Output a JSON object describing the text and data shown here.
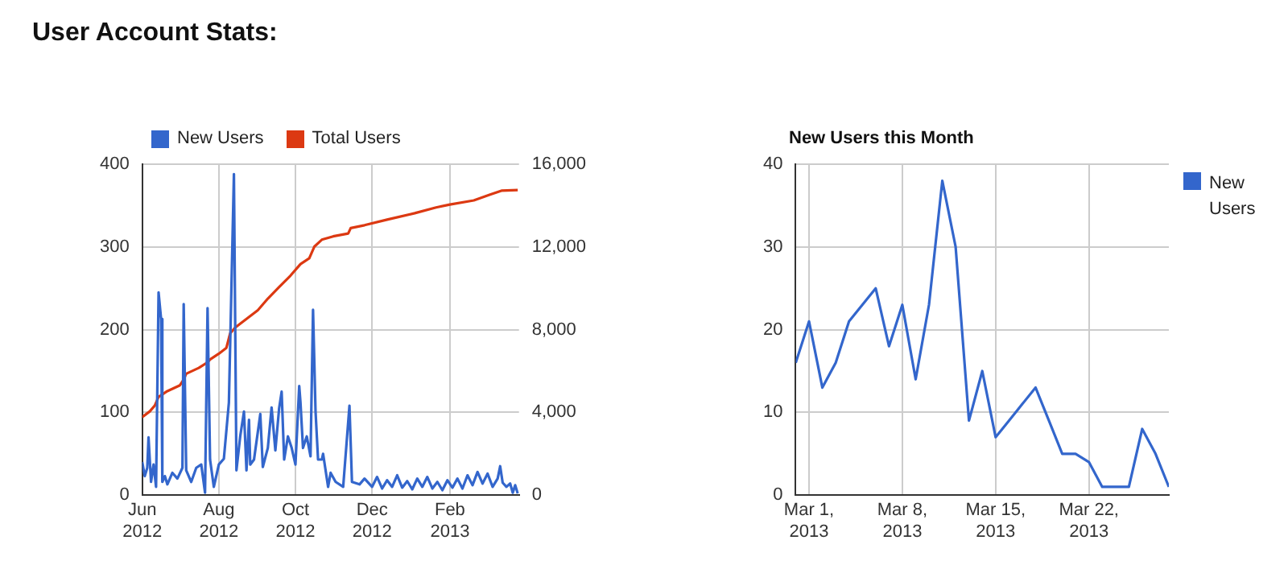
{
  "chart_data": [
    {
      "type": "line",
      "title": "User Account Stats:",
      "legend": "top left",
      "grid": true,
      "marker": "none",
      "xlim": [
        "2012-06-01",
        "2013-03-28"
      ],
      "xticks": [
        {
          "value": "2012-06-01",
          "label": "Jun 2012"
        },
        {
          "value": "2012-08-01",
          "label": "Aug 2012"
        },
        {
          "value": "2012-10-01",
          "label": "Oct 2012"
        },
        {
          "value": "2012-12-01",
          "label": "Dec 2012"
        },
        {
          "value": "2013-02-01",
          "label": "Feb 2013"
        }
      ],
      "ylim": [
        0,
        400
      ],
      "yticks": [
        0,
        100,
        200,
        300,
        400
      ],
      "y2lim": [
        0,
        16000
      ],
      "y2ticks": [
        0,
        {
          "value": 4000,
          "label": "4,000"
        },
        {
          "value": 8000,
          "label": "8,000"
        },
        {
          "value": 12000,
          "label": "12,000"
        },
        {
          "value": 16000,
          "label": "16,000"
        }
      ],
      "series": [
        {
          "name": "New Users",
          "color": "#3366cc",
          "axis": "y",
          "x": [
            "2012-06-01",
            "2012-06-03",
            "2012-06-05",
            "2012-06-06",
            "2012-06-08",
            "2012-06-10",
            "2012-06-12",
            "2012-06-14",
            "2012-06-16",
            "2012-06-17",
            "2012-06-19",
            "2012-06-21",
            "2012-06-25",
            "2012-06-29",
            "2012-07-03",
            "2012-07-04",
            "2012-07-06",
            "2012-07-10",
            "2012-07-14",
            "2012-07-18",
            "2012-07-21",
            "2012-07-23",
            "2012-07-25",
            "2012-07-28",
            "2012-08-01",
            "2012-08-05",
            "2012-08-09",
            "2012-08-13",
            "2012-08-15",
            "2012-08-18",
            "2012-08-21",
            "2012-08-23",
            "2012-08-25",
            "2012-08-26",
            "2012-08-29",
            "2012-09-03",
            "2012-09-05",
            "2012-09-09",
            "2012-09-12",
            "2012-09-15",
            "2012-09-18",
            "2012-09-20",
            "2012-09-22",
            "2012-09-25",
            "2012-09-28",
            "2012-10-01",
            "2012-10-04",
            "2012-10-05",
            "2012-10-07",
            "2012-10-10",
            "2012-10-13",
            "2012-10-15",
            "2012-10-17",
            "2012-10-19",
            "2012-10-22",
            "2012-10-23",
            "2012-10-27",
            "2012-10-29",
            "2012-11-02",
            "2012-11-08",
            "2012-11-13",
            "2012-11-15",
            "2012-11-21",
            "2012-11-25",
            "2012-12-01",
            "2012-12-05",
            "2012-12-09",
            "2012-12-13",
            "2012-12-17",
            "2012-12-21",
            "2012-12-25",
            "2012-12-29",
            "2013-01-02",
            "2013-01-06",
            "2013-01-10",
            "2013-01-14",
            "2013-01-18",
            "2013-01-22",
            "2013-01-26",
            "2013-01-30",
            "2013-02-03",
            "2013-02-07",
            "2013-02-11",
            "2013-02-15",
            "2013-02-19",
            "2013-02-23",
            "2013-02-27",
            "2013-03-03",
            "2013-03-07",
            "2013-03-11",
            "2013-03-13",
            "2013-03-15",
            "2013-03-18",
            "2013-03-21",
            "2013-03-23",
            "2013-03-25",
            "2013-03-27"
          ],
          "values": [
            40,
            23,
            33,
            70,
            16,
            37,
            10,
            245,
            213,
            16,
            23,
            13,
            27,
            20,
            33,
            231,
            30,
            16,
            33,
            37,
            3,
            226,
            43,
            10,
            37,
            44,
            112,
            388,
            30,
            71,
            101,
            30,
            91,
            37,
            43,
            98,
            34,
            57,
            106,
            54,
            105,
            125,
            43,
            71,
            57,
            37,
            132,
            112,
            57,
            71,
            47,
            224,
            101,
            43,
            43,
            50,
            10,
            27,
            16,
            10,
            108,
            16,
            13,
            20,
            10,
            22,
            8,
            18,
            10,
            24,
            9,
            17,
            7,
            20,
            10,
            22,
            8,
            16,
            6,
            18,
            9,
            20,
            8,
            24,
            12,
            28,
            14,
            26,
            10,
            20,
            35,
            15,
            10,
            14,
            3,
            12,
            2
          ]
        },
        {
          "name": "Total Users",
          "color": "#dc3912",
          "axis": "y2",
          "x": [
            "2012-06-01",
            "2012-06-07",
            "2012-06-11",
            "2012-06-14",
            "2012-06-21",
            "2012-07-01",
            "2012-07-04",
            "2012-07-06",
            "2012-07-16",
            "2012-07-23",
            "2012-07-25",
            "2012-08-01",
            "2012-08-07",
            "2012-08-10",
            "2012-08-14",
            "2012-08-23",
            "2012-09-01",
            "2012-09-09",
            "2012-09-18",
            "2012-09-27",
            "2012-10-05",
            "2012-10-12",
            "2012-10-16",
            "2012-10-22",
            "2012-10-31",
            "2012-11-12",
            "2012-11-14",
            "2012-11-25",
            "2012-12-13",
            "2013-01-04",
            "2013-01-21",
            "2013-02-01",
            "2013-02-20",
            "2013-03-05",
            "2013-03-14",
            "2013-03-27"
          ],
          "values": [
            3770,
            4050,
            4330,
            4750,
            5030,
            5310,
            5590,
            5870,
            6150,
            6420,
            6560,
            6840,
            7120,
            7820,
            8100,
            8520,
            8940,
            9500,
            10060,
            10610,
            11170,
            11450,
            12010,
            12350,
            12510,
            12650,
            12910,
            13050,
            13320,
            13630,
            13910,
            14050,
            14250,
            14530,
            14720,
            14750
          ]
        }
      ]
    },
    {
      "type": "line",
      "title": "New Users this Month",
      "legend": "right",
      "grid": true,
      "marker": "none",
      "xlim": [
        "2013-02-28",
        "2013-03-28"
      ],
      "xticks": [
        {
          "value": "2013-03-01",
          "label": "Mar 1, 2013"
        },
        {
          "value": "2013-03-08",
          "label": "Mar 8, 2013"
        },
        {
          "value": "2013-03-15",
          "label": "Mar 15, 2013"
        },
        {
          "value": "2013-03-22",
          "label": "Mar 22, 2013"
        }
      ],
      "ylim": [
        0,
        40
      ],
      "yticks": [
        0,
        10,
        20,
        30,
        40
      ],
      "series": [
        {
          "name": "New Users",
          "color": "#3366cc",
          "x": [
            "2013-02-28",
            "2013-03-01",
            "2013-03-02",
            "2013-03-03",
            "2013-03-04",
            "2013-03-05",
            "2013-03-06",
            "2013-03-07",
            "2013-03-08",
            "2013-03-09",
            "2013-03-10",
            "2013-03-11",
            "2013-03-12",
            "2013-03-13",
            "2013-03-14",
            "2013-03-15",
            "2013-03-16",
            "2013-03-17",
            "2013-03-18",
            "2013-03-19",
            "2013-03-20",
            "2013-03-21",
            "2013-03-22",
            "2013-03-23",
            "2013-03-24",
            "2013-03-25",
            "2013-03-26",
            "2013-03-27",
            "2013-03-28"
          ],
          "values": [
            16,
            21,
            13,
            16,
            21,
            23,
            25,
            18,
            23,
            14,
            23,
            38,
            30,
            9,
            15,
            7,
            9,
            11,
            13,
            9,
            5,
            5,
            4,
            1,
            1,
            1,
            8,
            5,
            1
          ]
        }
      ]
    }
  ]
}
